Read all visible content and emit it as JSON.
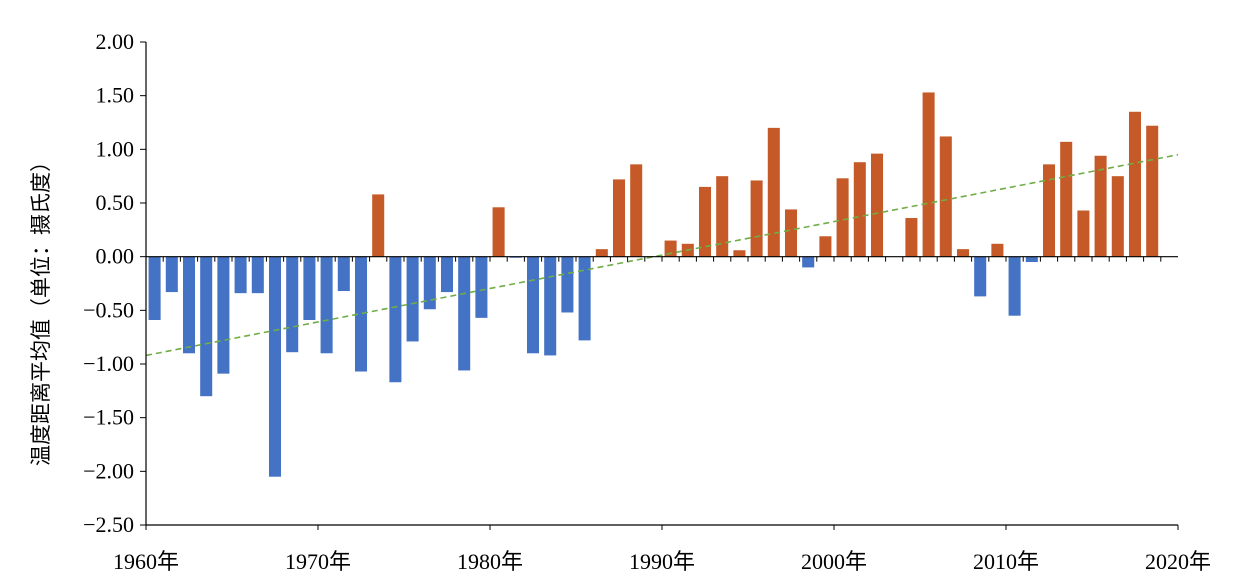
{
  "chart_data": {
    "type": "bar",
    "ylabel": "温度距离平均值（单位：摄氏度）",
    "xlabel": "",
    "title": "",
    "ylim": [
      -2.5,
      2.0
    ],
    "xlim": [
      1960,
      2020
    ],
    "yticks": [
      2.0,
      1.5,
      1.0,
      0.5,
      0.0,
      -0.5,
      -1.0,
      -1.5,
      -2.0,
      -2.5
    ],
    "ytick_labels": [
      "2.00",
      "1.50",
      "1.00",
      "0.50",
      "0.00",
      "−0.50",
      "−1.00",
      "−1.50",
      "−2.00",
      "−2.50"
    ],
    "xticks": [
      1960,
      1970,
      1980,
      1990,
      2000,
      2010,
      2020
    ],
    "xtick_labels": [
      "1960年",
      "1970年",
      "1980年",
      "1990年",
      "2000年",
      "2010年",
      "2020年"
    ],
    "grid": false,
    "colors": {
      "positive": "#C55A28",
      "negative": "#4472C4",
      "trend": "#70AD47",
      "axis": "#000000"
    },
    "trendline": {
      "style": "dashed",
      "x": [
        1960,
        2020
      ],
      "y": [
        -0.92,
        0.95
      ]
    },
    "x": [
      1961,
      1962,
      1963,
      1964,
      1965,
      1966,
      1967,
      1968,
      1969,
      1970,
      1971,
      1972,
      1973,
      1974,
      1975,
      1976,
      1977,
      1978,
      1979,
      1980,
      1981,
      1982,
      1983,
      1984,
      1985,
      1986,
      1987,
      1988,
      1989,
      1990,
      1991,
      1992,
      1993,
      1994,
      1995,
      1996,
      1997,
      1998,
      1999,
      2000,
      2001,
      2002,
      2003,
      2004,
      2005,
      2006,
      2007,
      2008,
      2009,
      2010,
      2011,
      2012,
      2013,
      2014,
      2015,
      2016,
      2017,
      2018,
      2019
    ],
    "values": [
      -0.59,
      -0.33,
      -0.9,
      -1.3,
      -1.09,
      -0.34,
      -0.34,
      -2.05,
      -0.89,
      -0.59,
      -0.9,
      -0.32,
      -1.07,
      0.58,
      -1.17,
      -0.79,
      -0.49,
      -0.33,
      -1.06,
      -0.57,
      0.46,
      -0.01,
      -0.9,
      -0.92,
      -0.52,
      -0.78,
      0.07,
      0.72,
      0.86,
      0.0,
      0.15,
      0.12,
      0.65,
      0.75,
      0.06,
      0.71,
      1.2,
      0.44,
      -0.1,
      0.19,
      0.73,
      0.88,
      0.96,
      0.0,
      0.36,
      1.53,
      1.12,
      0.07,
      -0.37,
      0.12,
      -0.55,
      -0.05,
      0.86,
      1.07,
      0.43,
      0.94,
      0.75,
      1.35,
      1.22
    ]
  }
}
